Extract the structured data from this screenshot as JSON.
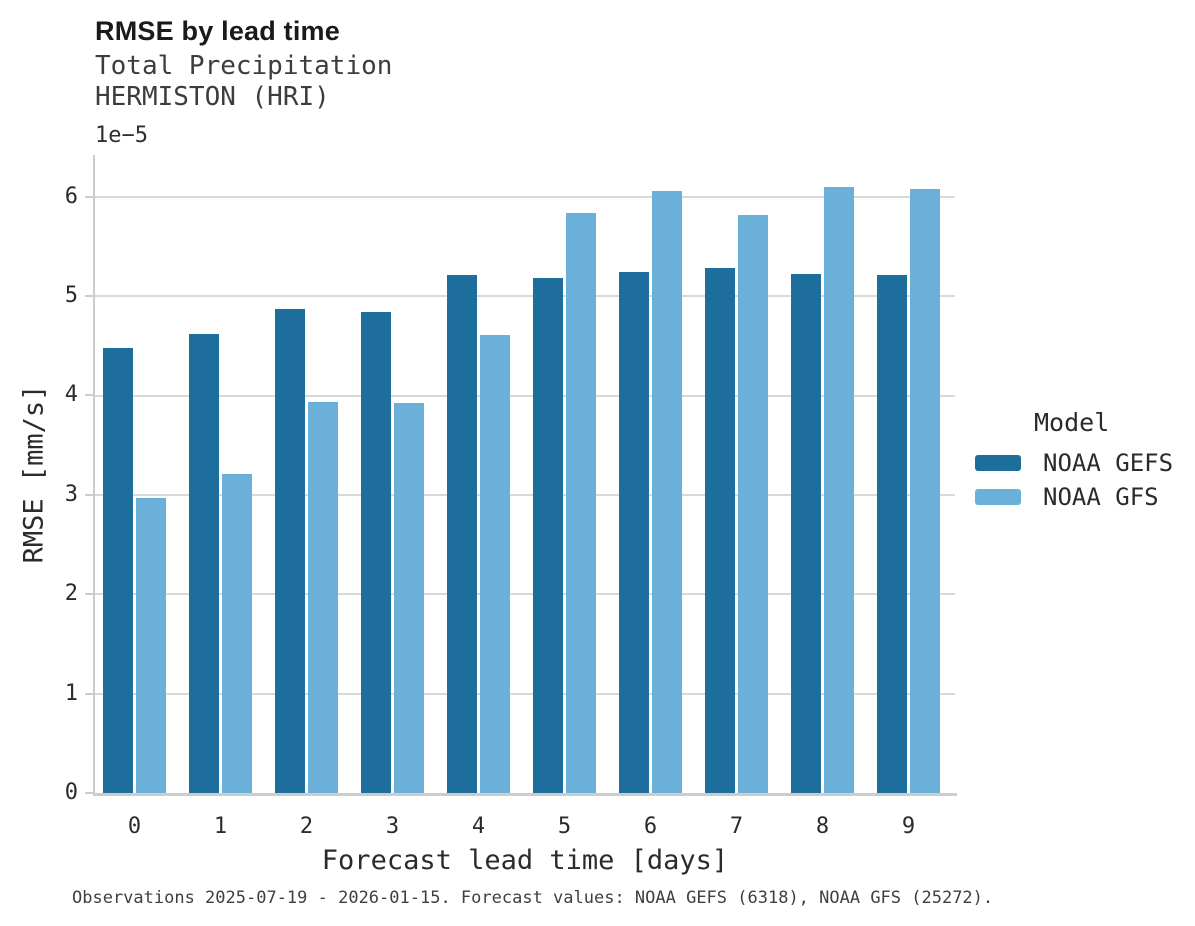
{
  "header": {
    "title": "RMSE by lead time",
    "subtitle_line1": "Total Precipitation",
    "subtitle_line2": "HERMISTON (HRI)"
  },
  "chart_data": {
    "type": "bar",
    "title": "RMSE by lead time",
    "subtitle": [
      "Total Precipitation",
      "HERMISTON (HRI)"
    ],
    "categories": [
      "0",
      "1",
      "2",
      "3",
      "4",
      "5",
      "6",
      "7",
      "8",
      "9"
    ],
    "series": [
      {
        "name": "NOAA GEFS",
        "color": "#1d6e9c",
        "values": [
          4.48,
          4.62,
          4.87,
          4.84,
          5.21,
          5.18,
          5.24,
          5.28,
          5.22,
          5.21
        ]
      },
      {
        "name": "NOAA GFS",
        "color": "#6bb0d8",
        "values": [
          2.97,
          3.21,
          3.93,
          3.92,
          4.61,
          5.84,
          6.06,
          5.82,
          6.1,
          6.08
        ]
      }
    ],
    "value_units_multiplier": "1e-5",
    "offset_label": "1e−5",
    "xlabel": "Forecast lead time [days]",
    "ylabel": "RMSE [mm/s]",
    "ylim": [
      0,
      6.42
    ],
    "yticks": [
      0,
      1,
      2,
      3,
      4,
      5,
      6
    ],
    "grid": true,
    "legend_position": "right"
  },
  "legend": {
    "title": "Model",
    "items": [
      {
        "label": "NOAA GEFS",
        "color": "#1d6e9c"
      },
      {
        "label": "NOAA GFS",
        "color": "#6bb0d8"
      }
    ]
  },
  "caption": "Observations 2025-07-19 - 2026-01-15. Forecast values: NOAA GEFS (6318), NOAA GFS (25272).",
  "colors": {
    "grid": "#d9d9d9",
    "spine": "#cccccc",
    "text_primary": "#1a1a1a",
    "text_secondary": "#3d3d3d"
  }
}
